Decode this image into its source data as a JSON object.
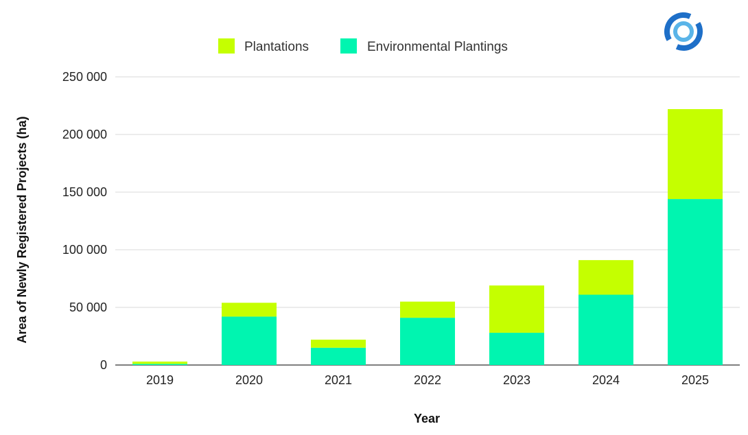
{
  "chart_data": {
    "type": "bar",
    "stacked": true,
    "categories": [
      "2019",
      "2020",
      "2021",
      "2022",
      "2023",
      "2024",
      "2025"
    ],
    "series": [
      {
        "name": "Environmental Plantings",
        "color": "#00f5b0",
        "values": [
          1000,
          42000,
          15000,
          41000,
          28000,
          61000,
          144000
        ]
      },
      {
        "name": "Plantations",
        "color": "#c5ff00",
        "values": [
          2000,
          12000,
          7000,
          14000,
          41000,
          30000,
          78000
        ]
      }
    ],
    "legend_order": [
      1,
      0
    ],
    "legend_position": "top-center",
    "xlabel": "Year",
    "ylabel": "Area of Newly Registered Projects (ha)",
    "ylim": [
      0,
      250000
    ],
    "yticks": [
      0,
      50000,
      100000,
      150000,
      200000,
      250000
    ],
    "ytick_labels": [
      "0",
      "50 000",
      "100 000",
      "150 000",
      "200 000",
      "250 000"
    ],
    "grid": true
  },
  "logo": {
    "icon": "circular-logo-icon",
    "colors": [
      "#1e6fc8",
      "#5ab4e8"
    ]
  }
}
